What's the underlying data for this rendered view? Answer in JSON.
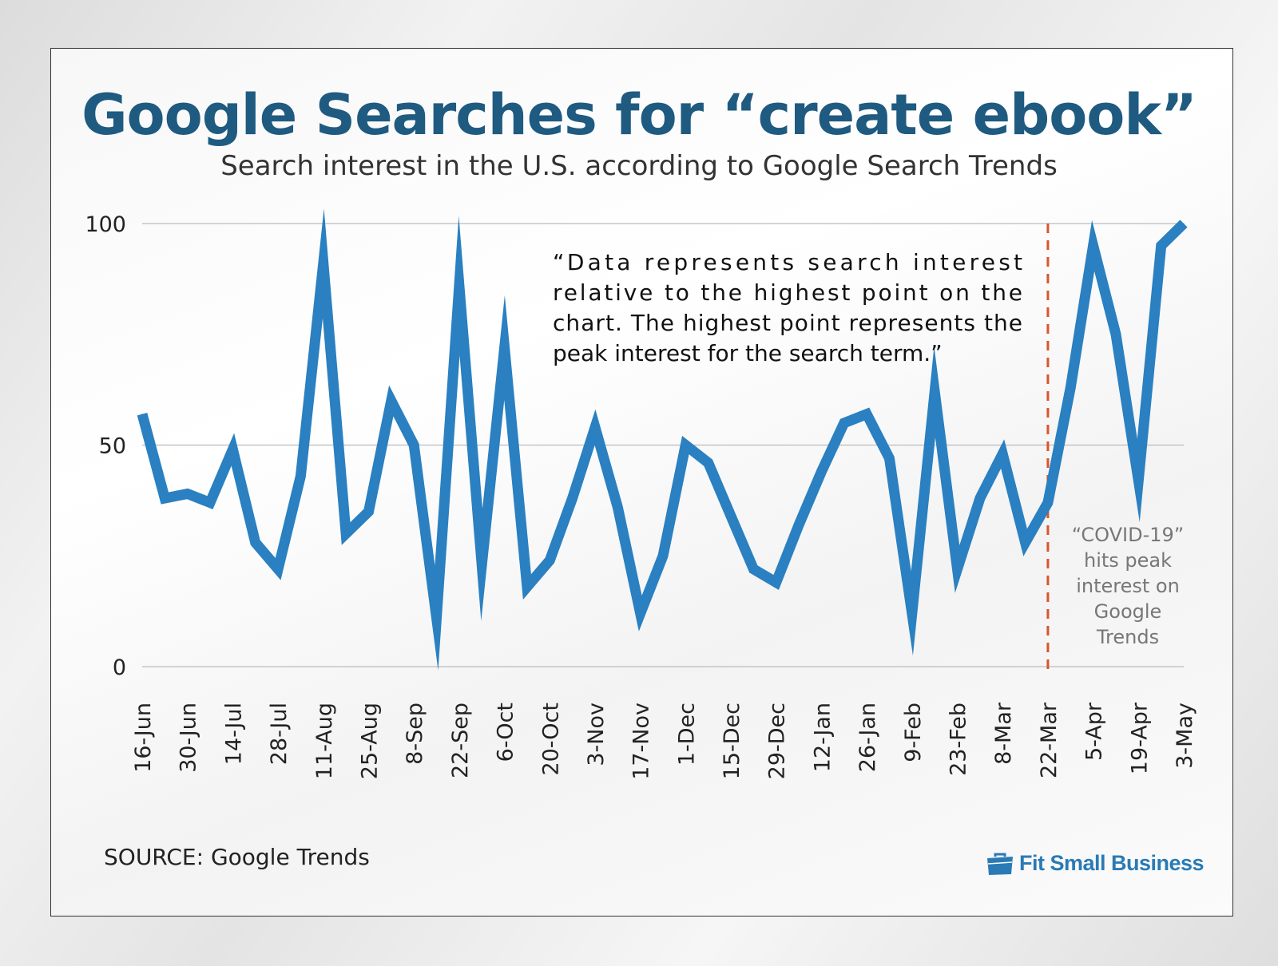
{
  "title": "Google Searches for “create ebook”",
  "subtitle": "Search interest in the U.S. according to Google Search Trends",
  "source": "SOURCE: Google Trends",
  "logo": {
    "text": "Fit Small Business",
    "icon": "briefcase-icon"
  },
  "annotations": {
    "note": "“Data represents search interest relative to the highest point on the chart. The highest point represents the peak interest for the search term.”",
    "covid": [
      "“COVID-19”",
      "hits peak",
      "interest on",
      "Google",
      "Trends"
    ]
  },
  "colors": {
    "line": "#2a80c0",
    "title": "#1f5a80",
    "marker": "#d9562b",
    "grid": "#bbbbbb"
  },
  "chart_data": {
    "type": "line",
    "ylim": [
      0,
      100
    ],
    "yticks": [
      0,
      50,
      100
    ],
    "grid": true,
    "xtick_labels": [
      "16-Jun",
      "30-Jun",
      "14-Jul",
      "28-Jul",
      "11-Aug",
      "25-Aug",
      "8-Sep",
      "22-Sep",
      "6-Oct",
      "20-Oct",
      "3-Nov",
      "17-Nov",
      "1-Dec",
      "15-Dec",
      "29-Dec",
      "12-Jan",
      "26-Jan",
      "9-Feb",
      "23-Feb",
      "8-Mar",
      "22-Mar",
      "5-Apr",
      "19-Apr",
      "3-May"
    ],
    "x": [
      "16-Jun",
      "23-Jun",
      "30-Jun",
      "7-Jul",
      "14-Jul",
      "21-Jul",
      "28-Jul",
      "4-Aug",
      "11-Aug",
      "18-Aug",
      "25-Aug",
      "1-Sep",
      "8-Sep",
      "15-Sep",
      "22-Sep",
      "29-Sep",
      "6-Oct",
      "13-Oct",
      "20-Oct",
      "27-Oct",
      "3-Nov",
      "10-Nov",
      "17-Nov",
      "24-Nov",
      "1-Dec",
      "8-Dec",
      "15-Dec",
      "22-Dec",
      "29-Dec",
      "5-Jan",
      "12-Jan",
      "19-Jan",
      "26-Jan",
      "2-Feb",
      "9-Feb",
      "16-Feb",
      "23-Feb",
      "1-Mar",
      "8-Mar",
      "15-Mar",
      "22-Mar",
      "29-Mar",
      "5-Apr",
      "12-Apr",
      "19-Apr",
      "26-Apr",
      "3-May"
    ],
    "values": [
      57,
      38,
      39,
      37,
      49,
      28,
      22,
      43,
      91,
      30,
      35,
      60,
      50,
      11,
      86,
      23,
      72,
      18,
      24,
      38,
      54,
      36,
      12,
      25,
      50,
      46,
      34,
      22,
      19,
      32,
      44,
      55,
      57,
      47,
      12,
      62,
      22,
      38,
      48,
      28,
      37,
      63,
      95,
      75,
      42,
      95,
      100
    ],
    "event_marker": {
      "x": "22-Mar",
      "label": "“COVID-19” hits peak interest on Google Trends"
    }
  }
}
